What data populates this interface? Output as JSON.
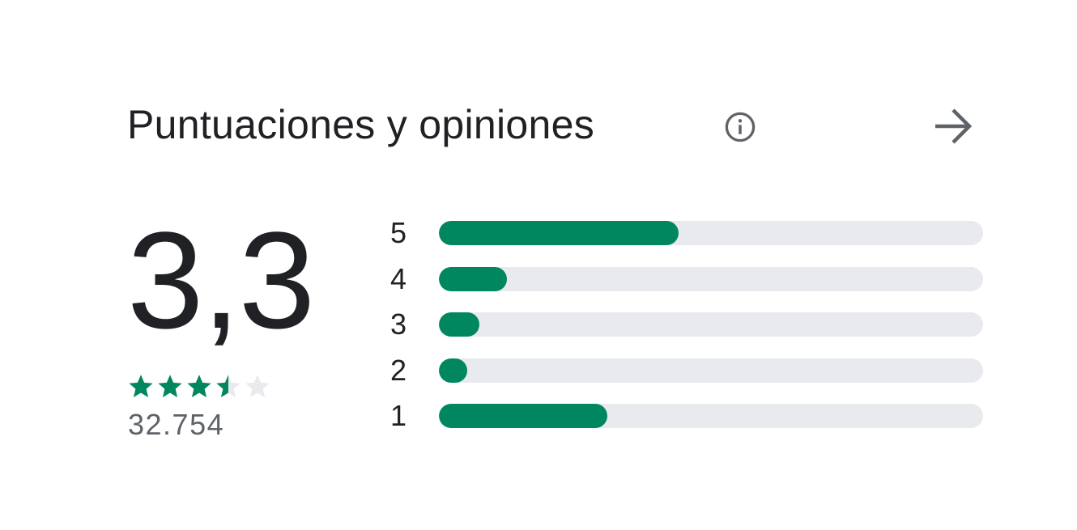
{
  "header": {
    "title": "Puntuaciones y opiniones",
    "info_icon": "info-circle-icon",
    "arrow_icon": "arrow-forward-icon"
  },
  "summary": {
    "rating": "3,3",
    "stars_value": 3.5,
    "stars_max": 5,
    "review_count": "32.754"
  },
  "histogram": [
    {
      "label": "5",
      "fraction": 0.44
    },
    {
      "label": "4",
      "fraction": 0.125
    },
    {
      "label": "3",
      "fraction": 0.075
    },
    {
      "label": "2",
      "fraction": 0.052
    },
    {
      "label": "1",
      "fraction": 0.31
    }
  ],
  "colors": {
    "accent": "#01875f",
    "track": "#e8eaed",
    "text": "#202124",
    "secondary_text": "#5f6368",
    "icon": "#5f6368"
  }
}
